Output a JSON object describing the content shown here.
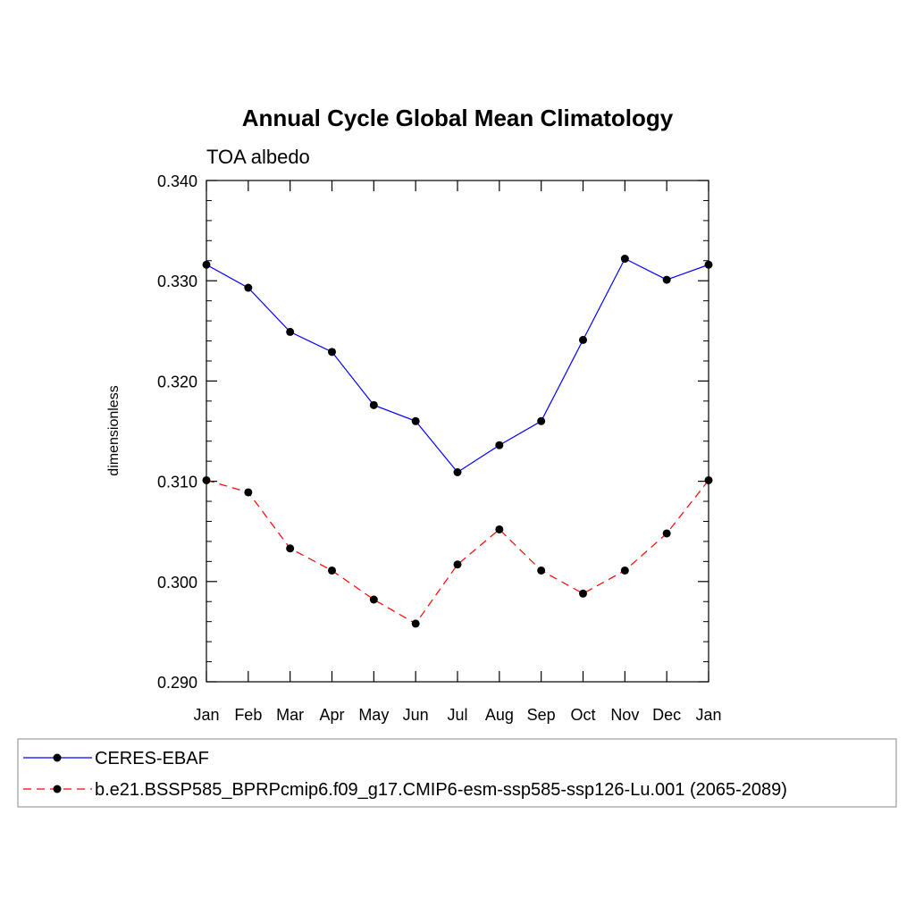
{
  "chart_data": {
    "type": "line",
    "title": "Annual Cycle Global Mean Climatology",
    "subtitle": "TOA albedo",
    "xlabel": "",
    "ylabel": "dimensionless",
    "categories": [
      "Jan",
      "Feb",
      "Mar",
      "Apr",
      "May",
      "Jun",
      "Jul",
      "Aug",
      "Sep",
      "Oct",
      "Nov",
      "Dec",
      "Jan"
    ],
    "ylim": [
      0.29,
      0.34
    ],
    "yticks": [
      "0.290",
      "0.300",
      "0.310",
      "0.320",
      "0.330",
      "0.340"
    ],
    "ytick_values": [
      0.29,
      0.3,
      0.31,
      0.32,
      0.33,
      0.34
    ],
    "grid": false,
    "legend_position": "bottom",
    "series": [
      {
        "name": "CERES-EBAF",
        "color": "#0000ff",
        "dash": "solid",
        "marker": "filled-circle",
        "values": [
          0.3316,
          0.3293,
          0.3249,
          0.3229,
          0.3176,
          0.316,
          0.3109,
          0.3136,
          0.316,
          0.3241,
          0.3322,
          0.3301,
          0.3316
        ]
      },
      {
        "name": "b.e21.BSSP585_BPRPcmip6.f09_g17.CMIP6-esm-ssp585-ssp126-Lu.001 (2065-2089)",
        "color": "#ff0000",
        "dash": "dashed",
        "marker": "filled-circle",
        "values": [
          0.3101,
          0.3089,
          0.3033,
          0.3011,
          0.2982,
          0.2958,
          0.3017,
          0.3052,
          0.3011,
          0.2988,
          0.3011,
          0.3048,
          0.3101
        ]
      }
    ]
  }
}
